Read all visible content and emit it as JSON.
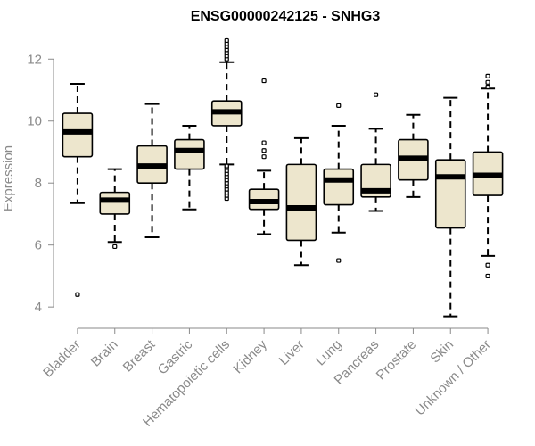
{
  "chart_data": {
    "type": "box",
    "title": "ENSG00000242125 - SNHG3",
    "xlabel": "",
    "ylabel": "Expression",
    "ylim": [
      3.4,
      12.9
    ],
    "yticks": [
      4,
      6,
      8,
      10,
      12
    ],
    "ytick_labels": [
      "4",
      "6",
      "8",
      "10",
      "12"
    ],
    "categories": [
      "Bladder",
      "Brain",
      "Breast",
      "Gastric",
      "Hematopoietic cells",
      "Kidney",
      "Liver",
      "Lung",
      "Pancreas",
      "Prostate",
      "Skin",
      "Unknown / Other"
    ],
    "boxes": [
      {
        "whisker_low": 7.35,
        "q1": 8.85,
        "median": 9.65,
        "q3": 10.25,
        "whisker_high": 11.2,
        "outliers": [
          4.4
        ]
      },
      {
        "whisker_low": 6.1,
        "q1": 7.0,
        "median": 7.45,
        "q3": 7.7,
        "whisker_high": 8.45,
        "outliers": [
          5.95
        ]
      },
      {
        "whisker_low": 6.25,
        "q1": 8.0,
        "median": 8.55,
        "q3": 9.2,
        "whisker_high": 10.55,
        "outliers": []
      },
      {
        "whisker_low": 7.15,
        "q1": 8.45,
        "median": 9.05,
        "q3": 9.4,
        "whisker_high": 9.85,
        "outliers": []
      },
      {
        "whisker_low": 8.6,
        "q1": 9.85,
        "median": 10.3,
        "q3": 10.65,
        "whisker_high": 11.9,
        "outliers": [
          7.5,
          7.6,
          7.7,
          7.8,
          7.9,
          8.0,
          8.1,
          8.2,
          8.3,
          8.4,
          8.5,
          8.55,
          12.0,
          12.1,
          12.2,
          12.3,
          12.4,
          12.5,
          12.6
        ]
      },
      {
        "whisker_low": 6.35,
        "q1": 7.15,
        "median": 7.4,
        "q3": 7.8,
        "whisker_high": 8.4,
        "outliers": [
          8.85,
          9.05,
          9.3,
          11.3
        ]
      },
      {
        "whisker_low": 5.35,
        "q1": 6.15,
        "median": 7.2,
        "q3": 8.6,
        "whisker_high": 9.45,
        "outliers": []
      },
      {
        "whisker_low": 6.4,
        "q1": 7.3,
        "median": 8.1,
        "q3": 8.45,
        "whisker_high": 9.85,
        "outliers": [
          5.5,
          10.5
        ]
      },
      {
        "whisker_low": 7.1,
        "q1": 7.55,
        "median": 7.75,
        "q3": 8.6,
        "whisker_high": 9.75,
        "outliers": [
          10.85
        ]
      },
      {
        "whisker_low": 7.55,
        "q1": 8.1,
        "median": 8.8,
        "q3": 9.4,
        "whisker_high": 10.2,
        "outliers": []
      },
      {
        "whisker_low": 3.7,
        "q1": 6.55,
        "median": 8.2,
        "q3": 8.75,
        "whisker_high": 10.75,
        "outliers": []
      },
      {
        "whisker_low": 5.65,
        "q1": 7.6,
        "median": 8.25,
        "q3": 9.0,
        "whisker_high": 11.05,
        "outliers": [
          5.0,
          5.35,
          11.1,
          11.25,
          11.45
        ]
      }
    ],
    "box_fill": "#ede6cd",
    "box_stroke": "#000000",
    "axis_color": "#8a8a8a"
  }
}
